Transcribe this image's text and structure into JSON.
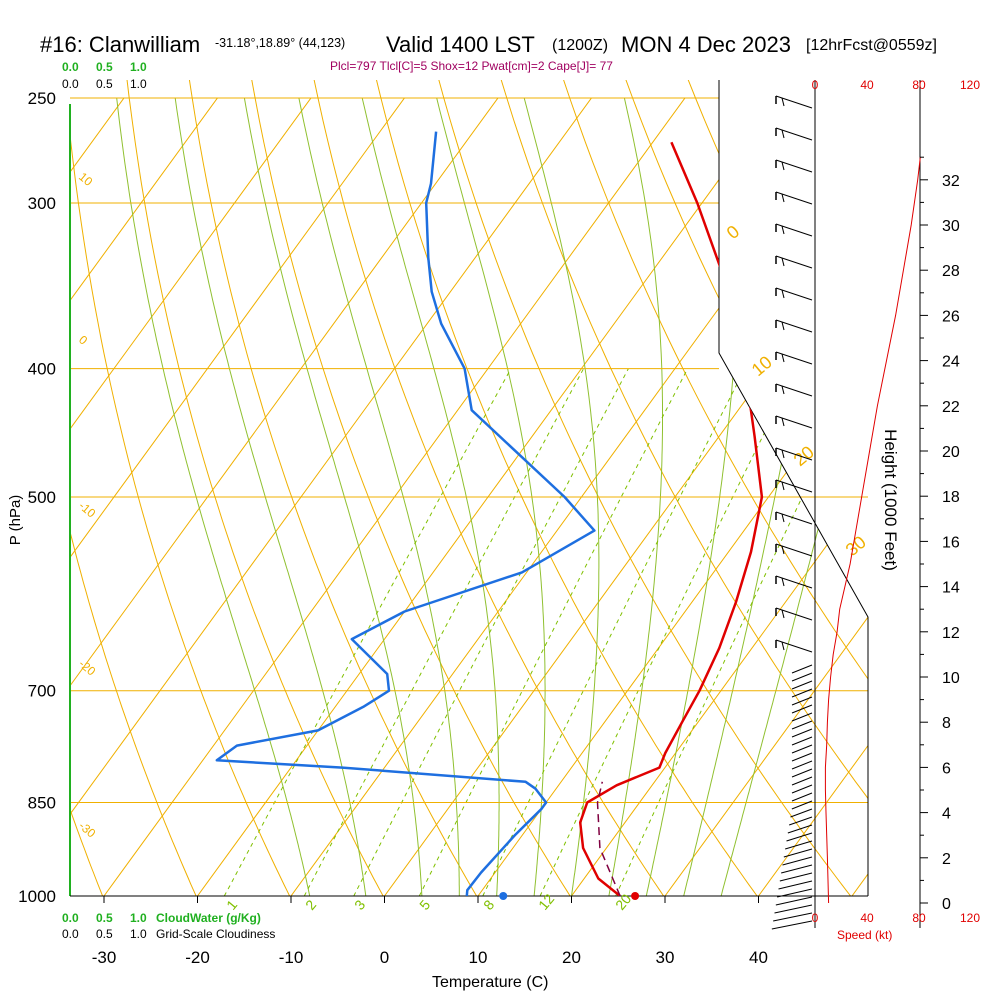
{
  "header": {
    "station": "#16: Clanwilliam",
    "coords": "-31.18°,18.89° (44,123)",
    "valid": "Valid 1400 LST",
    "utc": "(1200Z)",
    "date": "MON 4 Dec 2023",
    "forecast": "[12hrFcst@0559z]"
  },
  "indices": "Plcl=797 Tlcl[C]=5 Shox=12 Pwat[cm]=2 Cape[J]= 77",
  "colors": {
    "isotherm": "#f0b000",
    "mixing": "#80c000",
    "moist": "#90c030",
    "temperature": "#e00000",
    "dewpoint": "#1e6fe0",
    "parcel": "#800040",
    "title_indices": "#a00060",
    "cloud": "#20b020",
    "speed": "#e00000"
  },
  "cloud_scale": {
    "top_green": [
      "0.0",
      "0.5",
      "1.0"
    ],
    "top_black": [
      "0.0",
      "0.5",
      "1.0"
    ],
    "bottom_green": [
      "0.0",
      "0.5",
      "1.0"
    ],
    "bottom_black": [
      "0.0",
      "0.5",
      "1.0"
    ],
    "water_label": "CloudWater (g/Kg)",
    "cloudiness_label": "Grid-Scale Cloudiness"
  },
  "speed_axis": {
    "ticks": [
      "0",
      "40",
      "80",
      "120"
    ],
    "label": "Speed (kt)"
  },
  "height_axis": {
    "label": "Height (1000 Feet)",
    "ticks": [
      "0",
      "2",
      "4",
      "6",
      "8",
      "10",
      "12",
      "14",
      "16",
      "18",
      "20",
      "22",
      "24",
      "26",
      "28",
      "30",
      "32"
    ]
  },
  "chart_data": {
    "type": "line",
    "chart_kind": "skew-T log-P sounding",
    "xlabel": "Temperature (C)",
    "ylabel": "P (hPa)",
    "x_ticks": [
      -30,
      -20,
      -10,
      0,
      10,
      20,
      30,
      40
    ],
    "p_ticks": [
      250,
      300,
      400,
      500,
      700,
      850,
      1000
    ],
    "isotherm_labels": [
      "10",
      "0",
      "-10",
      "-20",
      "-30",
      "0",
      "10",
      "20",
      "30"
    ],
    "mixing_ratio_labels": [
      "1",
      "2",
      "3",
      "5",
      "8",
      "12",
      "20"
    ],
    "series": [
      {
        "key": "temperature",
        "points": [
          [
            1000,
            25.2
          ],
          [
            970,
            21.5
          ],
          [
            920,
            17.5
          ],
          [
            880,
            15.2
          ],
          [
            850,
            14.4
          ],
          [
            825,
            16.2
          ],
          [
            800,
            19.4
          ],
          [
            780,
            18.9
          ],
          [
            740,
            18.3
          ],
          [
            700,
            17.7
          ],
          [
            650,
            16.5
          ],
          [
            600,
            14.7
          ],
          [
            550,
            12.4
          ],
          [
            500,
            9.3
          ],
          [
            450,
            3.8
          ],
          [
            400,
            -2.5
          ],
          [
            350,
            -10.2
          ],
          [
            300,
            -20.5
          ],
          [
            270,
            -28.0
          ]
        ]
      },
      {
        "key": "dewpoint",
        "points": [
          [
            1000,
            8.8
          ],
          [
            990,
            8.4
          ],
          [
            960,
            8.5
          ],
          [
            900,
            9.2
          ],
          [
            860,
            10.0
          ],
          [
            850,
            10.0
          ],
          [
            830,
            7.8
          ],
          [
            820,
            6.2
          ],
          [
            800,
            -14.5
          ],
          [
            790,
            -28.5
          ],
          [
            770,
            -27.5
          ],
          [
            750,
            -20.0
          ],
          [
            720,
            -17.0
          ],
          [
            700,
            -15.5
          ],
          [
            680,
            -17.0
          ],
          [
            640,
            -23.5
          ],
          [
            610,
            -20.0
          ],
          [
            570,
            -10.5
          ],
          [
            530,
            -6.0
          ],
          [
            500,
            -11.8
          ],
          [
            430,
            -28.5
          ],
          [
            400,
            -32.5
          ],
          [
            370,
            -38.5
          ],
          [
            350,
            -42.0
          ],
          [
            330,
            -45.0
          ],
          [
            300,
            -49.5
          ],
          [
            290,
            -50.5
          ],
          [
            265,
            -54.0
          ]
        ]
      },
      {
        "key": "parcel",
        "points": [
          [
            1000,
            25.2
          ],
          [
            920,
            19.3
          ],
          [
            850,
            15.5
          ],
          [
            820,
            14.4
          ]
        ]
      }
    ],
    "surface_temperature": 26.8,
    "surface_dewpoint": 12.7,
    "wind_speed_profile_kt": [
      [
        0,
        10.5
      ],
      [
        1,
        10
      ],
      [
        2,
        9.5
      ],
      [
        3,
        9
      ],
      [
        4,
        8.5
      ],
      [
        5,
        8
      ],
      [
        6,
        8
      ],
      [
        7,
        9
      ],
      [
        8,
        9.5
      ],
      [
        9,
        10.5
      ],
      [
        10,
        12
      ],
      [
        11,
        14
      ],
      [
        12,
        17
      ],
      [
        13,
        19
      ],
      [
        14,
        23
      ],
      [
        15,
        27
      ],
      [
        16,
        30
      ],
      [
        18,
        36
      ],
      [
        20,
        42
      ],
      [
        22,
        48
      ],
      [
        24,
        55
      ],
      [
        26,
        62
      ],
      [
        28,
        68
      ],
      [
        30,
        74
      ],
      [
        32,
        79
      ],
      [
        33,
        81
      ]
    ]
  }
}
